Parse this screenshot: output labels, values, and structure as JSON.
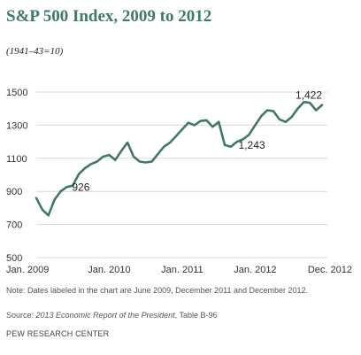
{
  "chart_data": {
    "type": "line",
    "title": "S&P 500 Index, 2009 to 2012",
    "subtitle": "(1941–43=10)",
    "xlabel": "",
    "ylabel": "",
    "ylim": [
      500,
      1500
    ],
    "y_ticks": [
      "1500",
      "1300",
      "1100",
      "900",
      "700",
      "500"
    ],
    "x_ticks": [
      {
        "label": "Jan. 2009",
        "index": 0
      },
      {
        "label": "Jan. 2010",
        "index": 12
      },
      {
        "label": "Jan. 2011",
        "index": 24
      },
      {
        "label": "Jan. 2012",
        "index": 36
      },
      {
        "label": "Dec. 2012",
        "index": 47
      }
    ],
    "grid": "horizontal",
    "color": "#417a63",
    "series": [
      {
        "values": [
          860,
          790,
          755,
          850,
          900,
          926,
          935,
          1005,
          1040,
          1065,
          1080,
          1110,
          1120,
          1090,
          1145,
          1195,
          1110,
          1080,
          1075,
          1080,
          1125,
          1170,
          1195,
          1235,
          1275,
          1315,
          1300,
          1325,
          1330,
          1290,
          1320,
          1180,
          1170,
          1200,
          1215,
          1243,
          1300,
          1355,
          1390,
          1385,
          1335,
          1320,
          1350,
          1400,
          1440,
          1435,
          1390,
          1422
        ]
      }
    ],
    "annotations": [
      {
        "label": "926",
        "index": 5
      },
      {
        "label": "1,243",
        "index": 35
      },
      {
        "label": "1,422",
        "index": 47
      }
    ]
  },
  "note": "Note: Dates labeled in the chart are June 2009, December 2011 and December 2012.",
  "source": {
    "prefix": "Source: ",
    "publication": "2013 Economic Report of the President",
    "suffix": ", Table B-96"
  },
  "brand": "PEW RESEARCH CENTER"
}
